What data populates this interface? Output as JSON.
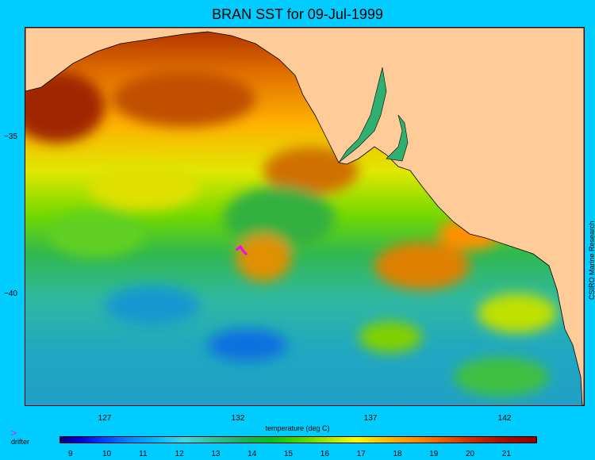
{
  "title": "BRAN SST for 09-Jul-1999",
  "x_ticks": [
    "127",
    "132",
    "137",
    "142"
  ],
  "y_ticks": [
    "−35",
    "−40"
  ],
  "xlabel": "temperature (deg C)",
  "credit": "CSIRO Marine Research",
  "legend": {
    "drifter_symbol": ">",
    "drifter_label": "drifter"
  },
  "colorbar": {
    "labels": [
      "9",
      "10",
      "11",
      "12",
      "13",
      "14",
      "15",
      "16",
      "17",
      "18",
      "19",
      "20",
      "21"
    ],
    "min": 8.7,
    "max": 21.8
  },
  "colors": {
    "background": "#00ccff",
    "land": "#ffcc99",
    "drifter": "#ff00ff"
  },
  "map": {
    "lon_range": [
      122.6,
      146.4
    ],
    "lat_range": [
      -43.5,
      -32.7
    ]
  }
}
